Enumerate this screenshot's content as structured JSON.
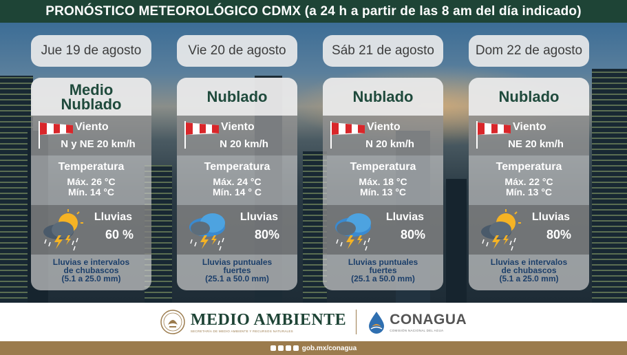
{
  "header": {
    "title": "PRONÓSTICO METEOROLÓGICO CDMX (a 24 h a partir de las 8 am del día indicado)"
  },
  "days": [
    {
      "day": "Jue 19 de agosto",
      "condition_l1": "Medio",
      "condition_l2": "Nublado",
      "wind_label": "Viento",
      "wind": "N y NE 20 km/h",
      "temp_label": "Temperatura",
      "temp_max": "Máx. 26 °C",
      "temp_min": "Mín. 14 °C",
      "rain_label": "Lluvias",
      "rain_pct": "60 %",
      "rain_icon": "sun-cloud-storm-icon",
      "desc_l1": "Lluvias e intervalos",
      "desc_l2": "de chubascos",
      "desc_l3": "(5.1 a 25.0 mm)"
    },
    {
      "day": "Vie 20 de agosto",
      "condition_l1": "Nublado",
      "condition_l2": "",
      "wind_label": "Viento",
      "wind": "N 20 km/h",
      "temp_label": "Temperatura",
      "temp_max": "Máx. 24 °C",
      "temp_min": "Mín. 14 ° C",
      "rain_label": "Lluvias",
      "rain_pct": "80%",
      "rain_icon": "cloud-storm-icon",
      "desc_l1": "Lluvias puntuales",
      "desc_l2": "fuertes",
      "desc_l3": "(25.1 a 50.0 mm)"
    },
    {
      "day": "Sáb 21 de agosto",
      "condition_l1": "Nublado",
      "condition_l2": "",
      "wind_label": "Viento",
      "wind": "N  20 km/h",
      "temp_label": "Temperatura",
      "temp_max": "Máx. 18 °C",
      "temp_min": "Mín. 13 °C",
      "rain_label": "Lluvias",
      "rain_pct": "80%",
      "rain_icon": "cloud-storm-icon",
      "desc_l1": "Lluvias puntuales",
      "desc_l2": "fuertes",
      "desc_l3": "(25.1 a 50.0 mm)"
    },
    {
      "day": "Dom 22 de agosto",
      "condition_l1": "Nublado",
      "condition_l2": "",
      "wind_label": "Viento",
      "wind": "NE 20 km/h",
      "temp_label": "Temperatura",
      "temp_max": "Máx. 22 °C",
      "temp_min": "Mín. 13 °C",
      "rain_label": "Lluvias",
      "rain_pct": "80%",
      "rain_icon": "sun-cloud-storm-icon",
      "desc_l1": "Lluvias e intervalos",
      "desc_l2": "de chubascos",
      "desc_l3": "(5.1 a 25.0 mm)"
    }
  ],
  "footer": {
    "medio_ambiente": "MEDIO AMBIENTE",
    "medio_ambiente_sub": "SECRETARÍA DE MEDIO AMBIENTE Y RECURSOS NATURALES",
    "conagua": "CONAGUA",
    "conagua_sub": "COMISIÓN NACIONAL DEL AGUA",
    "social_url": "gob.mx/conagua"
  },
  "colors": {
    "header_bg": "#1e4436",
    "condition_text": "#1f4a3c",
    "desc_text": "#1c3f6a",
    "bottom_bar": "#9b7b4d"
  }
}
